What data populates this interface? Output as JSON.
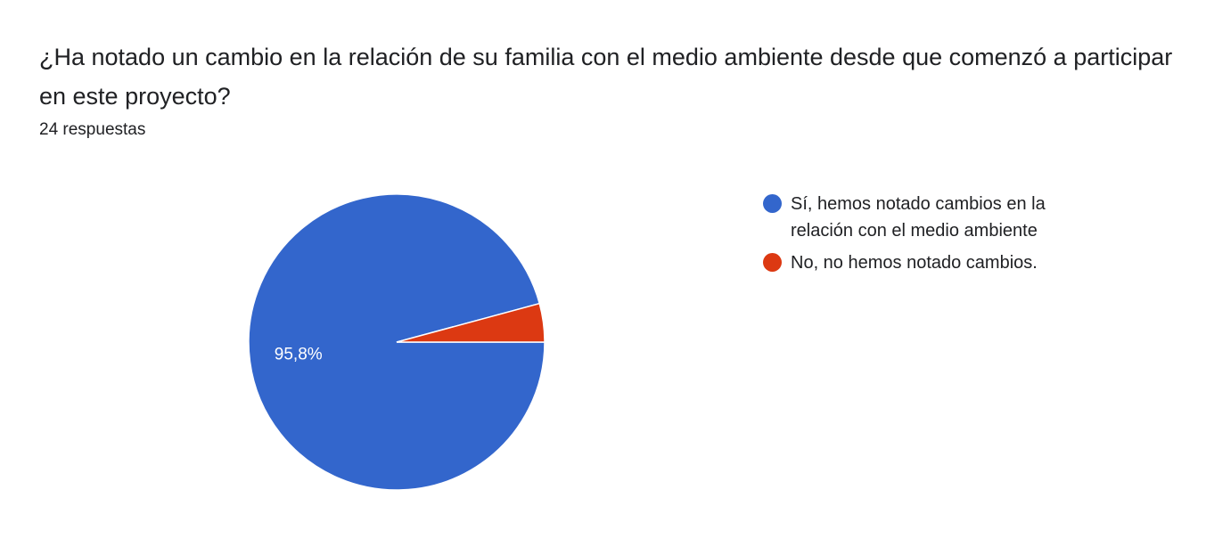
{
  "chart_data": {
    "type": "pie",
    "title": "¿Ha notado un cambio en la relación de su familia con el medio ambiente desde que comenzó a participar en este proyecto?",
    "subtitle": "24 respuestas",
    "categories": [
      "Sí, hemos notado cambios en la relación con el medio ambiente",
      "No, no hemos notado cambios."
    ],
    "values": [
      95.8,
      4.2
    ],
    "value_labels": [
      "95,8%",
      null
    ],
    "colors": [
      "#3366cc",
      "#dc3912"
    ]
  }
}
